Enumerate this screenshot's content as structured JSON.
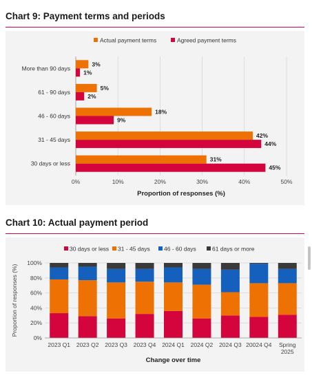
{
  "chart9_heading": "Chart 9: Payment terms and periods",
  "chart10_heading": "Chart 10: Actual payment period",
  "colors": {
    "accent_red": "#d4043c",
    "orange": "#ee7203",
    "blue": "#1560bd",
    "dark_grey": "#3a3a3a"
  },
  "chart_data": [
    {
      "type": "bar",
      "orientation": "horizontal",
      "categories": [
        "More than 90 days",
        "61 - 90 days",
        "46 - 60 days",
        "31 - 45 days",
        "30 days or less"
      ],
      "series": [
        {
          "name": "Actual payment terms",
          "color": "#ee7203",
          "values": [
            3,
            5,
            18,
            42,
            31
          ],
          "labels": [
            "3%",
            "5%",
            "18%",
            "42%",
            "31%"
          ]
        },
        {
          "name": "Agreed payment terms",
          "color": "#d4043c",
          "values": [
            1,
            2,
            9,
            44,
            45
          ],
          "labels": [
            "1%",
            "2%",
            "9%",
            "44%",
            "45%"
          ]
        }
      ],
      "xlim": [
        0,
        50
      ],
      "x_ticks": [
        "0%",
        "10%",
        "20%",
        "30%",
        "40%",
        "50%"
      ],
      "xlabel": "Proportion of responses (%)",
      "ylabel": "",
      "grid": "vertical",
      "legend": "top-center"
    },
    {
      "type": "bar",
      "orientation": "vertical",
      "stacked": true,
      "categories": [
        "2023 Q1",
        "2023 Q2",
        "2023 Q3",
        "2023 Q4",
        "2024 Q1",
        "2024 Q2",
        "2024 Q3",
        "20024 Q4",
        "Spring 2025"
      ],
      "series": [
        {
          "name": "30 days or less",
          "color": "#d4043c",
          "values": [
            33,
            29,
            26,
            32,
            36,
            26,
            30,
            28,
            31
          ]
        },
        {
          "name": "31 - 45 days",
          "color": "#ee7203",
          "values": [
            45,
            48,
            48,
            43,
            38,
            45,
            31,
            45,
            42
          ]
        },
        {
          "name": "46 - 60 days",
          "color": "#1560bd",
          "values": [
            16,
            18,
            18,
            17,
            20,
            21,
            30,
            26,
            19
          ]
        },
        {
          "name": "61 days or more",
          "color": "#3a3a3a",
          "values": [
            6,
            5,
            8,
            8,
            6,
            8,
            9,
            1,
            8
          ]
        }
      ],
      "ylim": [
        0,
        100
      ],
      "y_ticks": [
        "0%",
        "20%",
        "40%",
        "60%",
        "80%",
        "100%"
      ],
      "xlabel": "Change over time",
      "ylabel": "Proportion of responses (%)",
      "grid": "horizontal",
      "legend": "top-center"
    }
  ]
}
